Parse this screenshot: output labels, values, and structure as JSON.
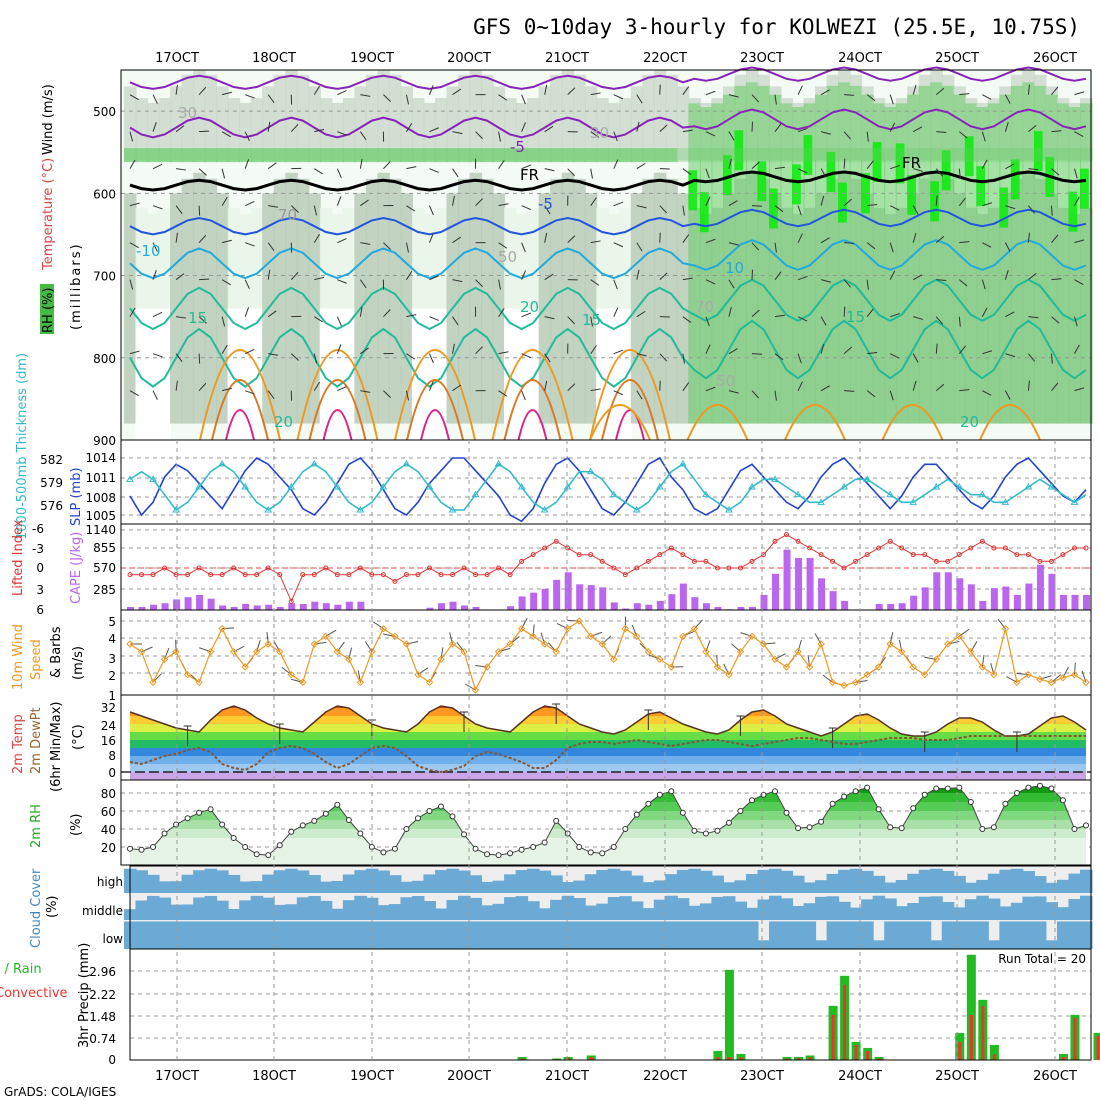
{
  "title": "GFS 0~10day 3-hourly for KOLWEZI (25.5E, 10.75S)",
  "footer": "GrADS: COLA/IGES",
  "dates": [
    "17OCT",
    "18OCT",
    "19OCT",
    "20OCT",
    "21OCT",
    "22OCT",
    "23OCT",
    "24OCT",
    "25OCT",
    "26OCT"
  ],
  "colors": {
    "rh_light": "#e8f4e8",
    "rh_mid": "#b8cfb8",
    "rh_green": "#66cc66",
    "rh_bright": "#00ee00",
    "temp_cold": "#8822bb",
    "temp_blue": "#2255dd",
    "temp_cyan": "#22aadd",
    "temp_teal": "#22bb99",
    "temp_warm": "#ee9922",
    "temp_hot": "#dd2288",
    "slp": "#2244cc",
    "thickness": "#33bbcc",
    "li": "#dd3333",
    "cape": "#bb66ee",
    "wind": "#ee9922",
    "precip_total": "#22bb22",
    "precip_conv": "#ee3333",
    "cloud": "#6aaad4",
    "rh2m": "#22aa22"
  },
  "chart_data": [
    {
      "type": "heatmap",
      "panel": "upper-air",
      "ylabel_parts": [
        "RH (%)",
        "Temperature (°C)",
        "Wind (m/s)"
      ],
      "ylabel_units": "(millibars)",
      "yticks": [
        500,
        600,
        700,
        800,
        900
      ],
      "ylim": [
        900,
        450
      ],
      "contour_labels": [
        "30",
        "30",
        "-5",
        "FR",
        "FR",
        "-5",
        "70",
        "-10",
        "50",
        "10",
        "20",
        "15",
        "15",
        "70",
        "20",
        "15",
        "50",
        "20"
      ],
      "isotherms_c": [
        -5,
        0,
        5,
        10,
        15,
        20
      ]
    },
    {
      "type": "line",
      "panel": "slp-thickness",
      "ylabel_left": "1000-500mb Thickness (dm)",
      "ylabel_right": "SLP (mb)",
      "left_ticks": [
        "582",
        "579",
        "576"
      ],
      "right_ticks": [
        "1014",
        "1011",
        "1008",
        "1005"
      ],
      "series": [
        {
          "name": "SLP",
          "values": [
            1008,
            1005,
            1007,
            1011,
            1013,
            1012,
            1010,
            1008,
            1006,
            1009,
            1012,
            1014,
            1013,
            1011,
            1009,
            1006,
            1005,
            1007,
            1010,
            1013,
            1014,
            1012,
            1009,
            1006,
            1005,
            1007,
            1010,
            1012,
            1014,
            1014,
            1012,
            1010,
            1008,
            1005,
            1004,
            1006,
            1010,
            1013,
            1014,
            1012,
            1009,
            1006,
            1005,
            1007,
            1010,
            1013,
            1014,
            1011,
            1009,
            1006,
            1005,
            1006,
            1009,
            1012,
            1013,
            1011,
            1009,
            1007,
            1006,
            1008,
            1011,
            1013,
            1014,
            1012,
            1010,
            1008,
            1006,
            1008,
            1011,
            1013,
            1013,
            1011,
            1009,
            1007,
            1006,
            1008,
            1011,
            1013,
            1014,
            1012,
            1010,
            1008,
            1007,
            1009
          ]
        },
        {
          "name": "Thickness",
          "values": [
            580,
            581,
            580,
            578,
            576,
            577,
            579,
            581,
            582,
            581,
            579,
            577,
            576,
            577,
            579,
            581,
            582,
            581,
            579,
            577,
            576,
            577,
            579,
            581,
            582,
            581,
            579,
            577,
            576,
            576,
            578,
            580,
            582,
            581,
            579,
            577,
            576,
            577,
            579,
            581,
            581,
            580,
            578,
            577,
            576,
            577,
            579,
            581,
            582,
            580,
            578,
            577,
            576,
            577,
            579,
            580,
            580,
            579,
            578,
            577,
            577,
            578,
            579,
            580,
            580,
            579,
            578,
            577,
            577,
            578,
            579,
            580,
            579,
            578,
            578,
            577,
            577,
            578,
            579,
            580,
            579,
            578,
            577,
            578
          ]
        }
      ]
    },
    {
      "type": "bar",
      "panel": "li-cape",
      "ylabel_left": "Lifted Index",
      "ylabel_right": "CAPE (J/kg)",
      "left_ticks": [
        "-6",
        "-3",
        "0",
        "3",
        "6"
      ],
      "right_ticks": [
        "1140",
        "855",
        "570",
        "285"
      ],
      "series": [
        {
          "name": "CAPE",
          "values": [
            40,
            40,
            70,
            90,
            140,
            170,
            200,
            150,
            60,
            40,
            80,
            60,
            70,
            40,
            90,
            80,
            110,
            90,
            70,
            110,
            110,
            0,
            0,
            0,
            0,
            0,
            30,
            90,
            110,
            60,
            40,
            0,
            0,
            50,
            180,
            230,
            280,
            400,
            500,
            340,
            330,
            300,
            100,
            20,
            90,
            70,
            120,
            210,
            350,
            170,
            90,
            40,
            10,
            40,
            40,
            200,
            480,
            800,
            690,
            690,
            420,
            250,
            120,
            0,
            0,
            80,
            80,
            90,
            190,
            300,
            500,
            500,
            420,
            340,
            120,
            290,
            310,
            200,
            350,
            600,
            480,
            200,
            200,
            200
          ]
        },
        {
          "name": "Lifted Index",
          "values": [
            1,
            1,
            1,
            0,
            1,
            1,
            0,
            1,
            1,
            0,
            1,
            1,
            0,
            1,
            5,
            1,
            1,
            0,
            1,
            1,
            0,
            1,
            1,
            2,
            1,
            1,
            0,
            1,
            1,
            0,
            1,
            1,
            0,
            1,
            -1,
            -2,
            -3,
            -4,
            -3,
            -2,
            -2,
            -1,
            0,
            1,
            0,
            -1,
            -2,
            -3,
            -2,
            -1,
            -1,
            0,
            0,
            0,
            -1,
            -2,
            -4,
            -5,
            -4,
            -3,
            -2,
            -1,
            0,
            -1,
            -2,
            -3,
            -4,
            -3,
            -2,
            -2,
            -1,
            -1,
            -2,
            -3,
            -4,
            -3,
            -3,
            -2,
            -2,
            -1,
            -1,
            -2,
            -3,
            -3
          ]
        }
      ]
    },
    {
      "type": "line",
      "panel": "wind10m",
      "ylabel_parts": [
        "10m Wind",
        "Speed",
        "& Barbs"
      ],
      "ylabel_units": "(m/s)",
      "yticks": [
        "5",
        "4",
        "3",
        "2",
        "1"
      ],
      "series": [
        {
          "name": "Speed",
          "values": [
            3.5,
            3.0,
            1.0,
            2.5,
            3.0,
            1.5,
            1.0,
            3.0,
            4.5,
            3.0,
            2.0,
            3.0,
            3.5,
            3.0,
            1.5,
            1.0,
            3.5,
            4.0,
            3.0,
            2.5,
            1.0,
            3.0,
            4.5,
            4.0,
            3.5,
            1.5,
            1.0,
            2.5,
            3.5,
            3.0,
            0.5,
            2.0,
            3.0,
            3.5,
            4.5,
            4.0,
            3.5,
            3.0,
            4.5,
            5.0,
            4.0,
            3.5,
            2.5,
            4.5,
            4.0,
            3.0,
            2.5,
            2.0,
            4.0,
            4.5,
            3.0,
            2.0,
            1.5,
            3.0,
            4.0,
            3.5,
            2.5,
            2.0,
            3.0,
            2.0,
            3.5,
            1.0,
            0.8,
            1.0,
            1.5,
            2.0,
            3.5,
            3.0,
            2.0,
            1.5,
            2.5,
            3.5,
            4.0,
            3.0,
            2.0,
            1.5,
            4.5,
            1.0,
            1.5,
            1.2,
            1.0,
            1.3,
            1.5,
            1.0
          ]
        }
      ]
    },
    {
      "type": "line",
      "panel": "temp2m",
      "ylabel_parts": [
        "2m Temp",
        "2m DewPt",
        "(6hr Min/Max)"
      ],
      "ylabel_units": "(°C)",
      "yticks": [
        "32",
        "24",
        "16",
        "8",
        "0"
      ],
      "series": [
        {
          "name": "2m Temp",
          "values": [
            30,
            28,
            26,
            24,
            22,
            21,
            20,
            26,
            31,
            33,
            31,
            27,
            24,
            22,
            21,
            20,
            25,
            30,
            33,
            32,
            28,
            24,
            22,
            21,
            20,
            24,
            30,
            33,
            32,
            28,
            24,
            22,
            21,
            20,
            25,
            30,
            33,
            32,
            28,
            24,
            22,
            20,
            19,
            21,
            25,
            29,
            30,
            27,
            24,
            22,
            20,
            19,
            21,
            26,
            30,
            31,
            28,
            24,
            22,
            20,
            18,
            20,
            24,
            28,
            29,
            26,
            22,
            19,
            18,
            18,
            20,
            24,
            27,
            27,
            25,
            21,
            18,
            18,
            19,
            23,
            27,
            28,
            25,
            21
          ]
        },
        {
          "name": "2m DewPt",
          "values": [
            5,
            4,
            6,
            8,
            9,
            11,
            12,
            10,
            4,
            2,
            1,
            4,
            10,
            12,
            13,
            12,
            9,
            5,
            2,
            4,
            8,
            12,
            13,
            12,
            8,
            3,
            1,
            0,
            1,
            3,
            8,
            10,
            9,
            7,
            5,
            2,
            2,
            6,
            12,
            14,
            15,
            15,
            14,
            15,
            16,
            15,
            14,
            13,
            14,
            15,
            16,
            16,
            15,
            14,
            13,
            14,
            15,
            16,
            17,
            17,
            16,
            15,
            14,
            14,
            15,
            16,
            17,
            17,
            17,
            16,
            16,
            16,
            17,
            18,
            18,
            18,
            18,
            18,
            18,
            18,
            18,
            18,
            18,
            18
          ]
        }
      ]
    },
    {
      "type": "area",
      "panel": "rh2m",
      "ylabel": "2m RH",
      "ylabel_units": "(%)",
      "yticks": [
        "80",
        "60",
        "40",
        "20"
      ],
      "series": [
        {
          "name": "2m RH",
          "values": [
            18,
            17,
            20,
            35,
            45,
            52,
            58,
            62,
            45,
            30,
            20,
            12,
            11,
            22,
            37,
            44,
            49,
            57,
            67,
            50,
            35,
            20,
            14,
            18,
            40,
            52,
            60,
            65,
            54,
            34,
            18,
            12,
            11,
            13,
            17,
            20,
            25,
            49,
            35,
            20,
            14,
            13,
            20,
            40,
            56,
            68,
            78,
            82,
            58,
            38,
            35,
            38,
            47,
            60,
            72,
            78,
            82,
            58,
            41,
            42,
            48,
            68,
            76,
            82,
            86,
            62,
            42,
            41,
            63,
            78,
            85,
            85,
            86,
            70,
            40,
            42,
            68,
            80,
            86,
            88,
            85,
            72,
            40,
            44
          ]
        }
      ]
    },
    {
      "type": "heatmap",
      "panel": "cloud",
      "ylabel": "Cloud Cover",
      "ylabel_units": "(%)",
      "row_labels": [
        "high",
        "middle",
        "low"
      ]
    },
    {
      "type": "bar",
      "panel": "precip",
      "ylabel_left_parts": [
        "Total / Rain",
        "Convective"
      ],
      "ylabel": "3hr Precip (mm)",
      "yticks": [
        "2.96",
        "2.22",
        "1.48",
        "0.74",
        "0"
      ],
      "run_total": "Run Total = 20",
      "series": [
        {
          "name": "Total",
          "values": [
            0,
            0,
            0,
            0,
            0,
            0,
            0,
            0,
            0,
            0,
            0,
            0,
            0,
            0,
            0,
            0,
            0,
            0,
            0,
            0,
            0,
            0,
            0,
            0,
            0,
            0,
            0,
            0,
            0,
            0,
            0,
            0,
            0,
            0,
            0.1,
            0,
            0,
            0.05,
            0.1,
            0,
            0.15,
            0,
            0,
            0,
            0,
            0,
            0,
            0,
            0,
            0,
            0,
            0.3,
            3.0,
            0.2,
            0,
            0,
            0,
            0.1,
            0.1,
            0.15,
            0,
            1.8,
            2.8,
            0.6,
            0.4,
            0.1,
            0,
            0,
            0,
            0,
            0,
            0,
            0.9,
            3.5,
            2.0,
            0.5,
            0,
            0,
            0,
            0,
            0,
            0.2,
            1.5,
            0,
            0.9
          ]
        },
        {
          "name": "Convective",
          "values": [
            0,
            0,
            0,
            0,
            0,
            0,
            0,
            0,
            0,
            0,
            0,
            0,
            0,
            0,
            0,
            0,
            0,
            0,
            0,
            0,
            0,
            0,
            0,
            0,
            0,
            0,
            0,
            0,
            0,
            0,
            0,
            0,
            0,
            0,
            0.05,
            0,
            0,
            0.03,
            0.08,
            0,
            0.1,
            0,
            0,
            0,
            0,
            0,
            0,
            0,
            0,
            0,
            0,
            0.1,
            0.1,
            0.1,
            0,
            0,
            0,
            0.05,
            0.08,
            0.1,
            0,
            1.5,
            2.5,
            0.5,
            0.3,
            0.05,
            0,
            0,
            0,
            0,
            0,
            0,
            0.6,
            1.5,
            1.8,
            0.2,
            0,
            0,
            0,
            0,
            0,
            0.1,
            1.4,
            0,
            0.8
          ]
        }
      ]
    }
  ]
}
